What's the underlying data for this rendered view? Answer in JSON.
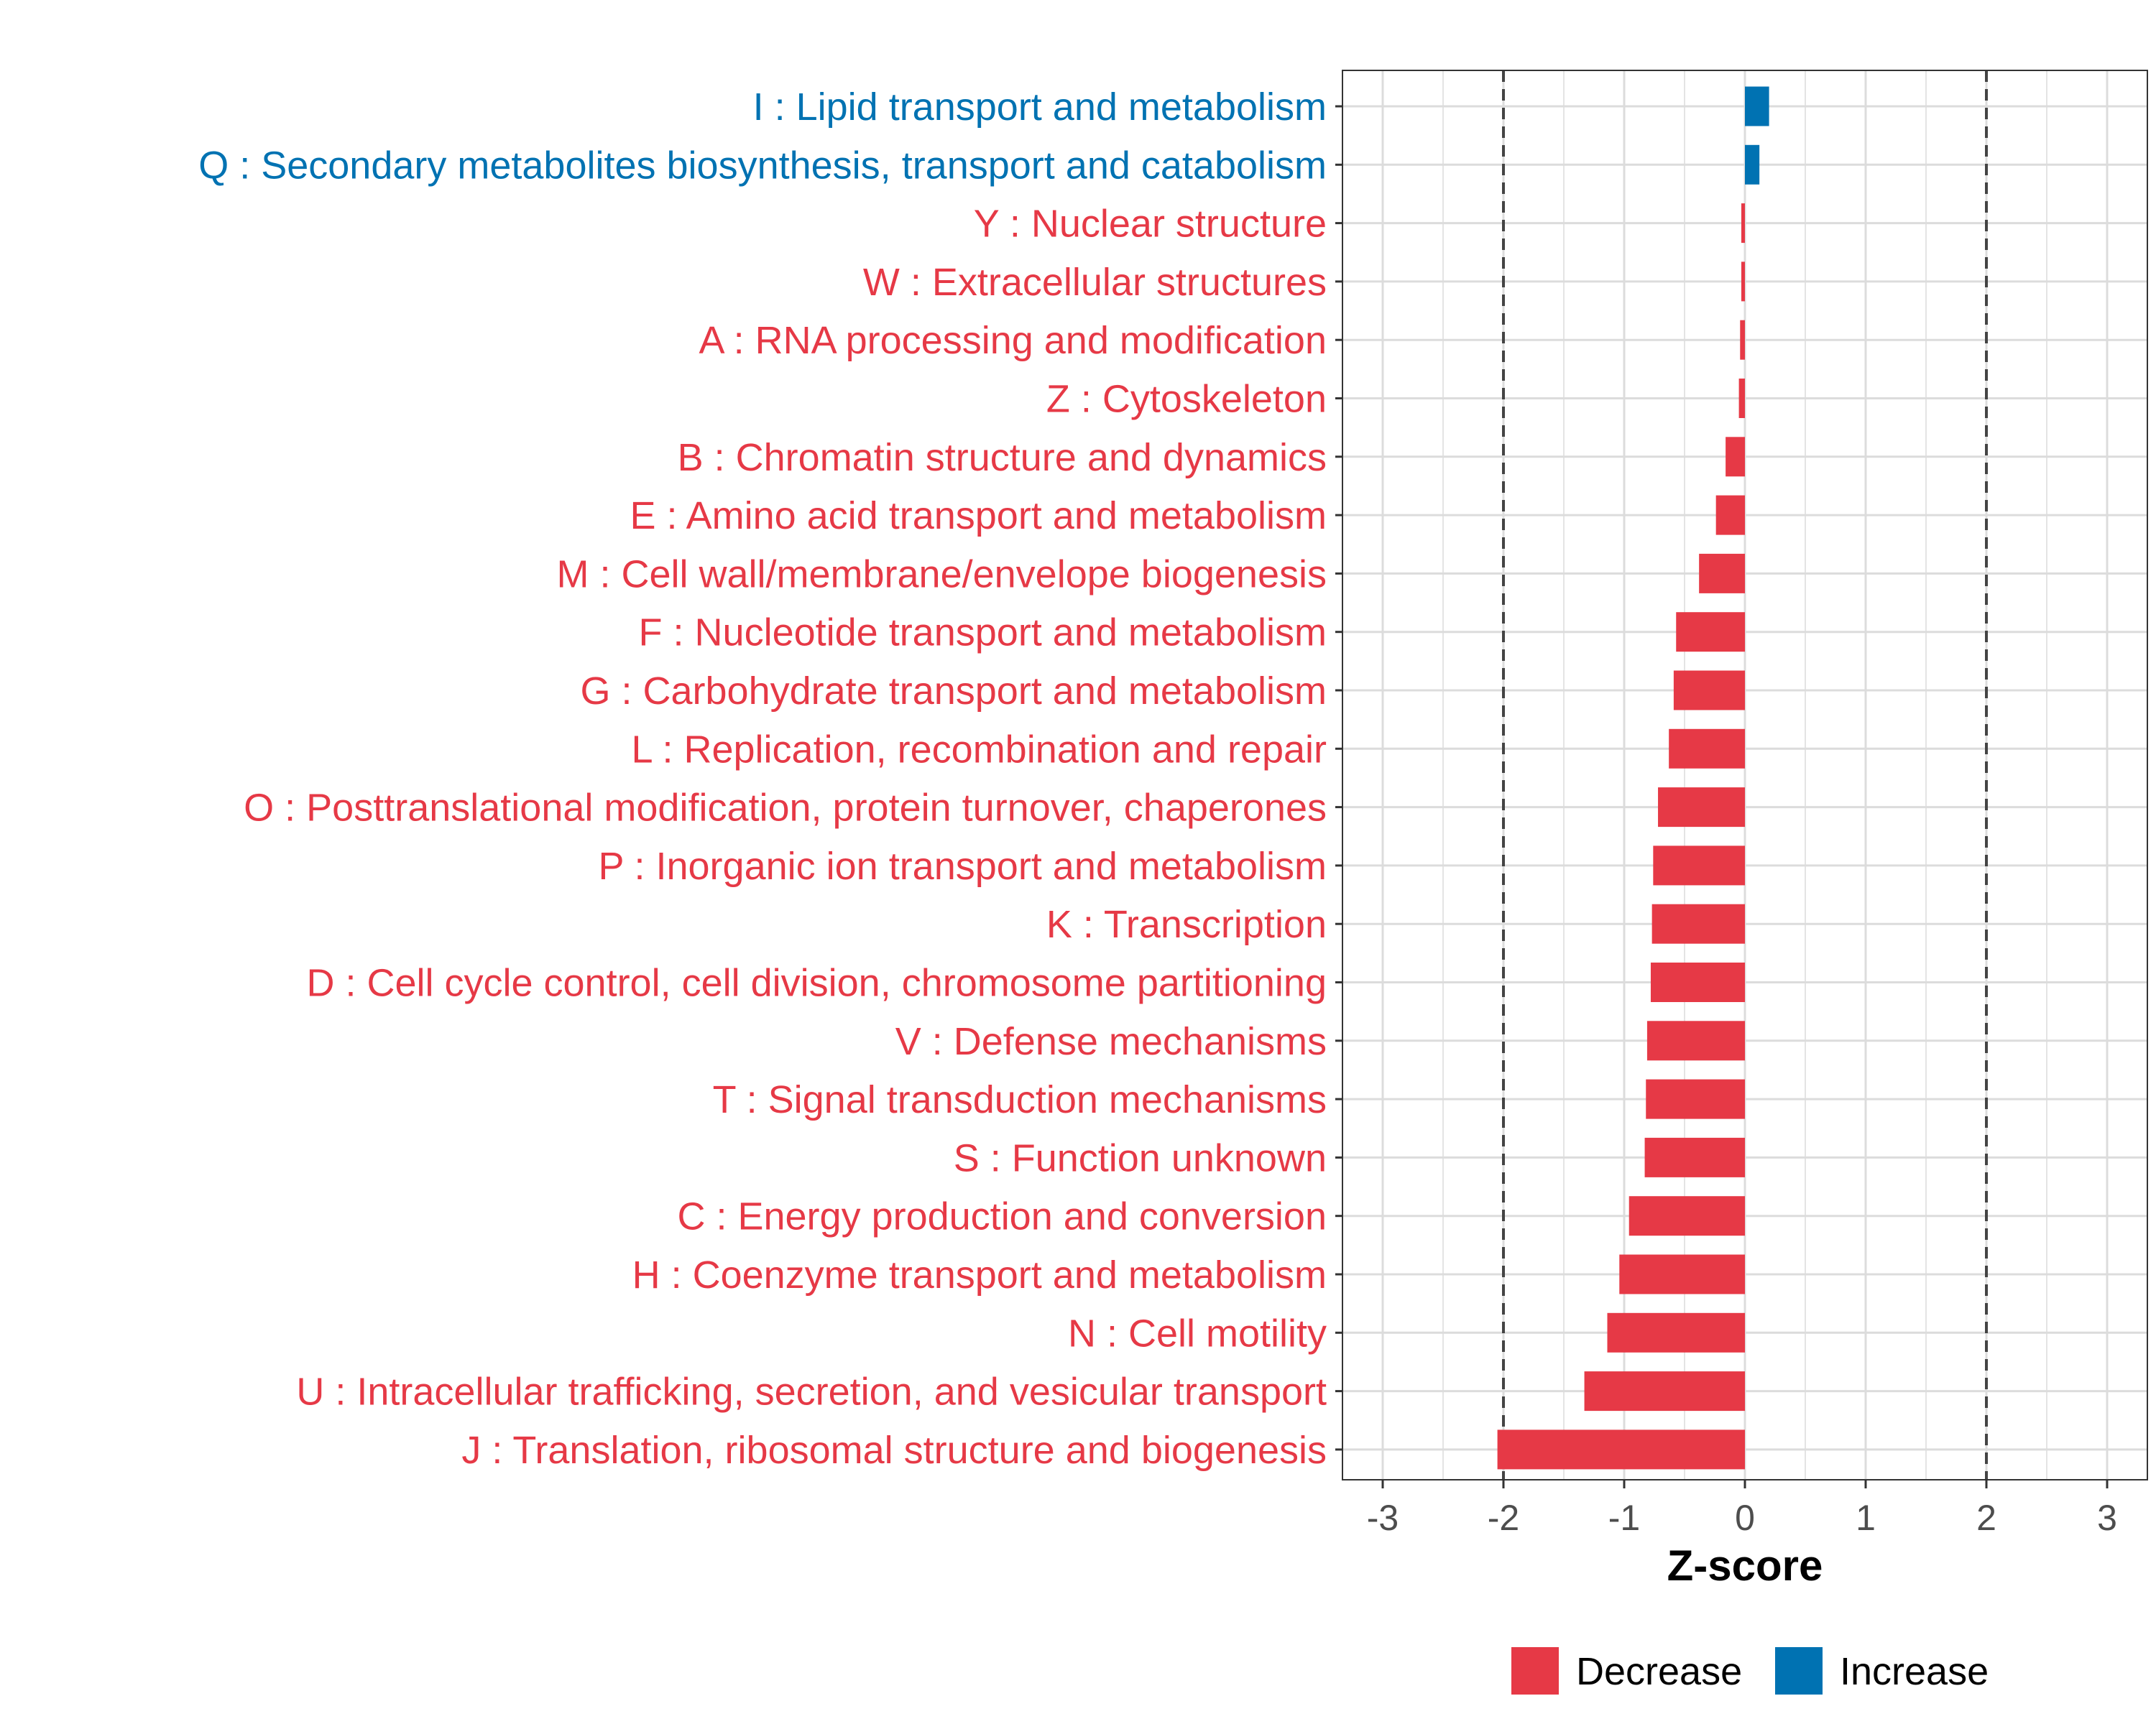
{
  "chart_data": {
    "type": "bar",
    "orientation": "horizontal",
    "xlabel": "Z-score",
    "xlim": [
      -3.3,
      3.3
    ],
    "xticks": [
      -3,
      -2,
      -1,
      0,
      1,
      2,
      3
    ],
    "tick_labels": [
      "-3",
      "-2",
      "-1",
      "0",
      "1",
      "2",
      "3"
    ],
    "reference_lines": [
      -2,
      2
    ],
    "grid": true,
    "legend_position": "bottom",
    "colors": {
      "Decrease": "#e63946",
      "Increase": "#0072b2"
    },
    "legend": [
      {
        "label": "Decrease",
        "color": "#e63946"
      },
      {
        "label": "Increase",
        "color": "#0072b2"
      }
    ],
    "categories": [
      "I : Lipid transport and metabolism",
      "Q : Secondary metabolites biosynthesis, transport and catabolism",
      "Y : Nuclear structure",
      "W : Extracellular structures",
      "A : RNA processing and modification",
      "Z : Cytoskeleton",
      "B : Chromatin structure and dynamics",
      "E : Amino acid transport and metabolism",
      "M : Cell wall/membrane/envelope biogenesis",
      "F : Nucleotide transport and metabolism",
      "G : Carbohydrate transport and metabolism",
      "L : Replication, recombination and repair",
      "O : Posttranslational modification, protein turnover, chaperones",
      "P : Inorganic ion transport and metabolism",
      "K : Transcription",
      "D : Cell cycle control, cell division, chromosome partitioning",
      "V : Defense mechanisms",
      "T : Signal transduction mechanisms",
      "S : Function unknown",
      "C : Energy production and conversion",
      "H : Coenzyme transport and metabolism",
      "N : Cell motility",
      "U : Intracellular trafficking, secretion, and vesicular transport",
      "J : Translation, ribosomal structure and biogenesis"
    ],
    "values": [
      0.2,
      0.12,
      -0.03,
      -0.03,
      -0.04,
      -0.05,
      -0.16,
      -0.24,
      -0.38,
      -0.57,
      -0.59,
      -0.63,
      -0.72,
      -0.76,
      -0.77,
      -0.78,
      -0.81,
      -0.82,
      -0.83,
      -0.96,
      -1.04,
      -1.14,
      -1.33,
      -2.05
    ],
    "groups": [
      "Increase",
      "Increase",
      "Decrease",
      "Decrease",
      "Decrease",
      "Decrease",
      "Decrease",
      "Decrease",
      "Decrease",
      "Decrease",
      "Decrease",
      "Decrease",
      "Decrease",
      "Decrease",
      "Decrease",
      "Decrease",
      "Decrease",
      "Decrease",
      "Decrease",
      "Decrease",
      "Decrease",
      "Decrease",
      "Decrease",
      "Decrease"
    ]
  }
}
